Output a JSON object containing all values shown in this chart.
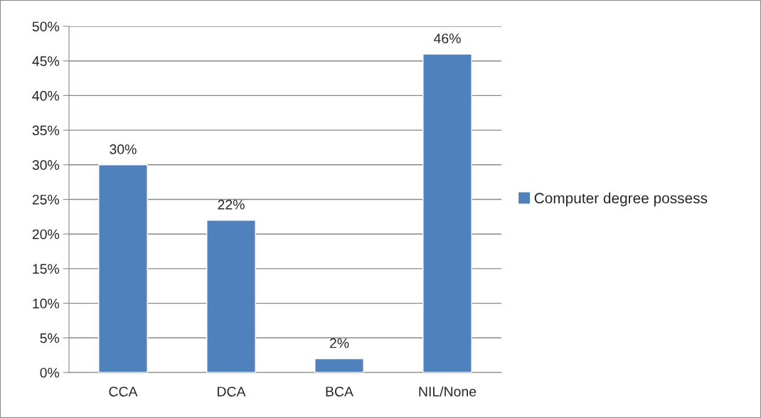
{
  "chart_data": {
    "type": "bar",
    "categories": [
      "CCA",
      "DCA",
      "BCA",
      "NIL/None"
    ],
    "series": [
      {
        "name": "Computer degree possess",
        "color": "#4f81bd",
        "values": [
          30,
          22,
          2,
          46
        ],
        "value_labels": [
          "30%",
          "22%",
          "2%",
          "46%"
        ]
      }
    ],
    "ylim": [
      0,
      50
    ],
    "yticks": [
      {
        "value": 0,
        "label": "0%"
      },
      {
        "value": 5,
        "label": "5%"
      },
      {
        "value": 10,
        "label": "10%"
      },
      {
        "value": 15,
        "label": "15%"
      },
      {
        "value": 20,
        "label": "20%"
      },
      {
        "value": 25,
        "label": "25%"
      },
      {
        "value": 30,
        "label": "30%"
      },
      {
        "value": 35,
        "label": "35%"
      },
      {
        "value": 40,
        "label": "40%"
      },
      {
        "value": 45,
        "label": "45%"
      },
      {
        "value": 50,
        "label": "50%"
      }
    ],
    "grid": "y",
    "legend": "right"
  }
}
